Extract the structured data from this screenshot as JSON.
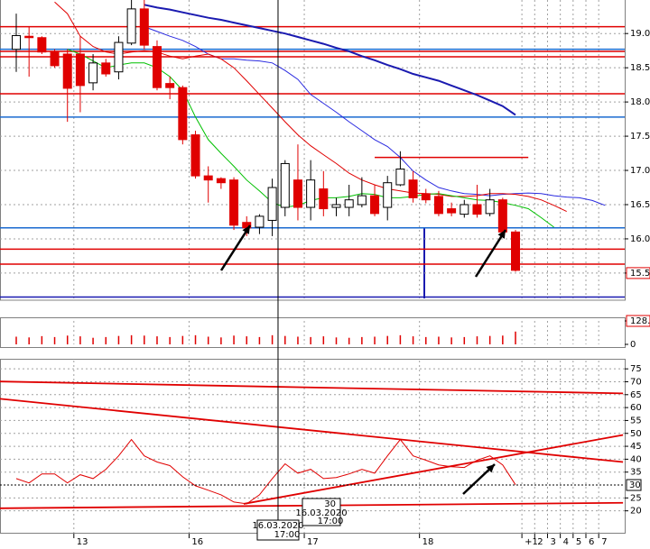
{
  "chart_data": [
    {
      "type": "candlestick",
      "open": [
        18.77,
        18.96,
        18.94,
        18.73,
        18.7,
        18.7,
        18.28,
        18.57,
        18.44,
        18.86,
        19.36,
        18.81,
        18.27,
        18.21,
        17.52,
        16.92,
        16.88,
        16.86,
        16.24,
        16.17,
        16.27,
        16.46,
        16.86,
        16.46,
        16.73,
        16.46,
        16.46,
        16.5,
        16.63,
        16.46,
        16.79,
        16.86,
        16.66,
        16.62,
        16.44,
        16.36,
        16.5,
        16.37,
        16.57,
        16.1
      ],
      "high": [
        19.29,
        19.1,
        18.96,
        18.77,
        18.77,
        18.96,
        18.7,
        18.63,
        18.96,
        19.49,
        19.49,
        18.9,
        18.37,
        18.24,
        17.58,
        17.06,
        16.9,
        16.9,
        16.33,
        16.36,
        16.88,
        17.15,
        17.38,
        17.15,
        16.99,
        16.6,
        16.79,
        16.9,
        16.79,
        16.92,
        17.28,
        16.99,
        16.73,
        16.7,
        16.53,
        16.57,
        16.79,
        16.73,
        16.6,
        16.13
      ],
      "low": [
        18.44,
        18.37,
        18.7,
        18.5,
        17.71,
        17.85,
        18.17,
        18.37,
        18.33,
        18.83,
        18.77,
        18.17,
        18.04,
        17.38,
        16.88,
        16.53,
        16.73,
        16.13,
        16.04,
        16.07,
        16.04,
        16.33,
        16.27,
        16.27,
        16.33,
        16.33,
        16.33,
        16.46,
        16.33,
        16.27,
        16.77,
        16.53,
        16.52,
        16.33,
        16.33,
        16.31,
        16.31,
        16.33,
        16.04,
        15.52
      ],
      "close": [
        18.97,
        18.94,
        18.73,
        18.53,
        18.2,
        18.24,
        18.57,
        18.41,
        18.87,
        19.36,
        18.83,
        18.21,
        18.21,
        17.45,
        16.92,
        16.86,
        16.82,
        16.2,
        16.16,
        16.33,
        16.75,
        17.1,
        16.46,
        16.86,
        16.44,
        16.5,
        16.57,
        16.63,
        16.37,
        16.82,
        17.02,
        16.6,
        16.57,
        16.37,
        16.38,
        16.5,
        16.36,
        16.57,
        16.1,
        15.54
      ],
      "up_color": "#ffffff",
      "down_color": "#e00000",
      "overlays": [
        {
          "color": "#1a1ab0",
          "width": 2,
          "values": [
            null,
            null,
            null,
            null,
            null,
            null,
            null,
            null,
            null,
            null,
            19.42,
            19.38,
            19.35,
            19.31,
            19.27,
            19.23,
            19.2,
            19.16,
            19.12,
            19.08,
            19.04,
            19.0,
            18.95,
            18.9,
            18.85,
            18.79,
            18.74,
            18.67,
            18.61,
            18.54,
            18.48,
            18.41,
            18.36,
            18.31,
            18.24,
            18.17,
            18.1,
            18.02,
            17.94,
            17.81
          ]
        },
        {
          "color": "#2a2ae0",
          "width": 1,
          "values": [
            null,
            null,
            null,
            null,
            null,
            null,
            null,
            null,
            null,
            null,
            19.1,
            19.03,
            18.96,
            18.9,
            18.81,
            18.7,
            18.63,
            18.63,
            18.61,
            18.6,
            18.57,
            18.46,
            18.33,
            18.11,
            17.98,
            17.85,
            17.71,
            17.58,
            17.45,
            17.35,
            17.19,
            16.99,
            16.86,
            16.75,
            16.7,
            16.66,
            16.65,
            16.63,
            16.65,
            16.66,
            16.67,
            16.66,
            16.63,
            16.61,
            16.6,
            16.56,
            16.49
          ]
        },
        {
          "color": "#e00000",
          "width": 1,
          "values": [
            null,
            null,
            null,
            19.46,
            19.29,
            18.96,
            18.81,
            18.73,
            18.7,
            18.73,
            18.75,
            18.73,
            18.67,
            18.63,
            18.67,
            18.7,
            18.63,
            18.5,
            18.31,
            18.11,
            17.91,
            17.71,
            17.52,
            17.36,
            17.23,
            17.1,
            16.96,
            16.86,
            16.79,
            16.73,
            16.7,
            16.67,
            16.66,
            16.65,
            16.62,
            16.62,
            16.63,
            16.66,
            16.66,
            16.65,
            16.62,
            16.57,
            16.49,
            16.4
          ]
        },
        {
          "color": "#00c000",
          "width": 1,
          "values": [
            null,
            null,
            null,
            null,
            18.77,
            18.7,
            18.6,
            18.5,
            18.54,
            18.57,
            18.57,
            18.5,
            18.37,
            18.17,
            17.78,
            17.45,
            17.25,
            17.06,
            16.86,
            16.7,
            16.53,
            16.46,
            16.49,
            16.56,
            16.6,
            16.6,
            16.62,
            16.66,
            16.65,
            16.6,
            16.6,
            16.62,
            16.65,
            16.66,
            16.63,
            16.6,
            16.57,
            16.56,
            16.53,
            16.49,
            16.44,
            16.31,
            16.17
          ]
        }
      ],
      "levels": [
        {
          "value": 19.1,
          "color": "#e00000"
        },
        {
          "value": 18.74,
          "color": "#e00000"
        },
        {
          "value": 18.66,
          "color": "#e00000"
        },
        {
          "value": 18.12,
          "color": "#e00000"
        },
        {
          "value": 15.85,
          "color": "#e00000"
        },
        {
          "value": 15.63,
          "color": "#e00000"
        },
        {
          "value": 17.19,
          "color": "#e00000",
          "from": 28,
          "to": 40
        },
        {
          "value": 18.77,
          "color": "#1a6ad0"
        },
        {
          "value": 17.78,
          "color": "#1a6ad0"
        },
        {
          "value": 16.16,
          "color": "#1a6ad0"
        },
        {
          "value": 15.15,
          "color": "#1a1ab0"
        }
      ],
      "ylim": [
        15.13,
        19.49
      ],
      "yticks": [
        {
          "value": 19,
          "label": "19.00"
        },
        {
          "value": 18.5,
          "label": "18.50"
        },
        {
          "value": 18,
          "label": "18.00"
        },
        {
          "value": 17.5,
          "label": "17.50"
        },
        {
          "value": 17,
          "label": "17.00"
        },
        {
          "value": 16.5,
          "label": "16.50"
        },
        {
          "value": 16,
          "label": "16.00"
        },
        {
          "value": 15.5,
          "label": "15.50",
          "color": "#e00000"
        }
      ],
      "grid": true
    },
    {
      "type": "bar",
      "color": "#e00000",
      "values": [
        42,
        38,
        45,
        40,
        48,
        44,
        36,
        40,
        46,
        50,
        48,
        44,
        40,
        46,
        50,
        42,
        38,
        48,
        44,
        40,
        50,
        46,
        42,
        40,
        44,
        38,
        36,
        40,
        42,
        46,
        50,
        44,
        40,
        42,
        38,
        40,
        44,
        46,
        48,
        70
      ],
      "ylim": [
        0,
        128.2
      ],
      "yticks": [
        {
          "value": 128.2,
          "label": "128.2",
          "color": "#e00000"
        },
        0
      ]
    },
    {
      "type": "line",
      "categories": [
        null,
        null,
        null,
        null,
        null,
        "13",
        null,
        null,
        null,
        null,
        null,
        null,
        null,
        null,
        "16",
        null,
        null,
        null,
        null,
        null,
        null,
        null,
        null,
        "17",
        null,
        null,
        null,
        null,
        null,
        null,
        null,
        null,
        "18",
        null,
        null,
        null,
        null,
        null,
        null,
        null,
        "+1",
        "2",
        "3",
        "4",
        "5",
        "6",
        "7"
      ],
      "series": [
        {
          "color": "#e00000",
          "values": [
            32.5,
            30.8,
            34.3,
            34.3,
            30.8,
            34.0,
            32.5,
            36.1,
            41.3,
            47.6,
            41.3,
            38.9,
            37.5,
            33.2,
            29.7,
            28.0,
            26.2,
            23.4,
            22.7,
            26.2,
            32.5,
            38.2,
            34.6,
            36.1,
            32.5,
            32.9,
            34.3,
            36.1,
            34.6,
            41.3,
            47.6,
            41.3,
            39.6,
            37.8,
            37.1,
            36.8,
            39.6,
            41.3,
            37.8,
            30.1,
            null,
            null,
            null,
            null,
            null,
            null,
            null
          ]
        }
      ],
      "trendlines": [
        {
          "color": "#e00000",
          "x": [
            -1.27,
            47.4
          ],
          "y": [
            70.1,
            65.5
          ]
        },
        {
          "color": "#e00000",
          "x": [
            -1.27,
            47.4
          ],
          "y": [
            63.4,
            38.9
          ]
        },
        {
          "color": "#e00000",
          "x": [
            17.77,
            47.4
          ],
          "y": [
            22.7,
            49.4
          ]
        },
        {
          "color": "#e00000",
          "x": [
            -1.27,
            47.4
          ],
          "y": [
            21.0,
            23.1
          ]
        }
      ],
      "crosshair": {
        "x": 20.45,
        "value": 30,
        "date": "16.03.2020",
        "time": "17:00"
      },
      "ylim": [
        11.5,
        78.2
      ],
      "yticks": [
        75,
        70,
        65,
        60,
        55,
        50,
        45,
        40,
        35,
        25,
        20
      ],
      "grid": true
    }
  ]
}
